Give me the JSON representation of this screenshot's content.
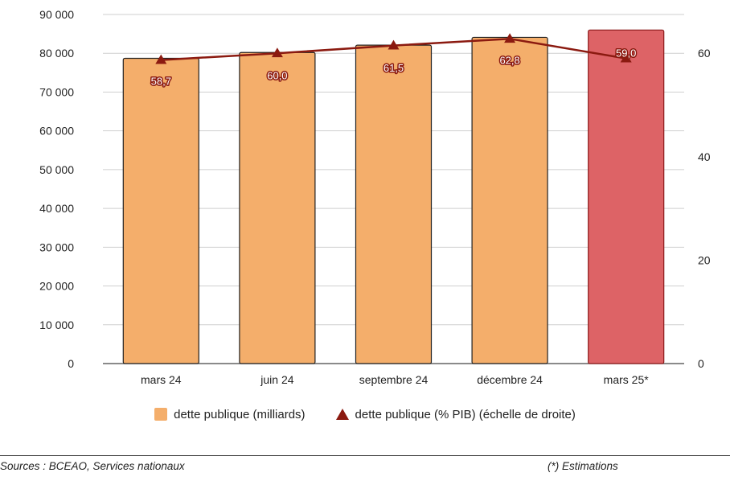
{
  "chart_data": {
    "type": "bar+line",
    "categories": [
      "mars 24",
      "juin 24",
      "septembre 24",
      "décembre 24",
      "mars 25*"
    ],
    "series": [
      {
        "name": "dette publique (milliards)",
        "type": "bar",
        "axis": "left",
        "values": [
          78700,
          80200,
          82100,
          84100,
          86000
        ],
        "colors": [
          "#f4ae6b",
          "#f4ae6b",
          "#f4ae6b",
          "#f4ae6b",
          "#dd6366"
        ],
        "edge_colors": [
          "#222222",
          "#222222",
          "#222222",
          "#222222",
          "#8b1a1a"
        ]
      },
      {
        "name": "dette publique (% PIB) (échelle de droite)",
        "type": "line",
        "axis": "right",
        "marker": "triangle",
        "color": "#8b1a10",
        "values": [
          58.7,
          60.0,
          61.5,
          62.8,
          59.0
        ],
        "data_labels": [
          "58,7",
          "60,0",
          "61,5",
          "62,8",
          "59,0"
        ]
      }
    ],
    "y_left": {
      "range": [
        0,
        90000
      ],
      "ticks": [
        0,
        10000,
        20000,
        30000,
        40000,
        50000,
        60000,
        70000,
        80000,
        90000
      ],
      "tick_labels": [
        "0",
        "10 000",
        "20 000",
        "30 000",
        "40 000",
        "50 000",
        "60 000",
        "70 000",
        "80 000",
        "90 000"
      ]
    },
    "y_right": {
      "range": [
        0,
        67.5
      ],
      "ticks": [
        0,
        20,
        40,
        60
      ],
      "tick_labels": [
        "0",
        "20",
        "40",
        "60"
      ]
    },
    "grid": true,
    "legend_position": "bottom"
  },
  "legend": {
    "bar_label": "dette publique (milliards)",
    "line_label": "dette publique (% PIB) (échelle de droite)"
  },
  "footer": {
    "source": "Sources : BCEAO, Services nationaux",
    "note": "(*) Estimations"
  }
}
